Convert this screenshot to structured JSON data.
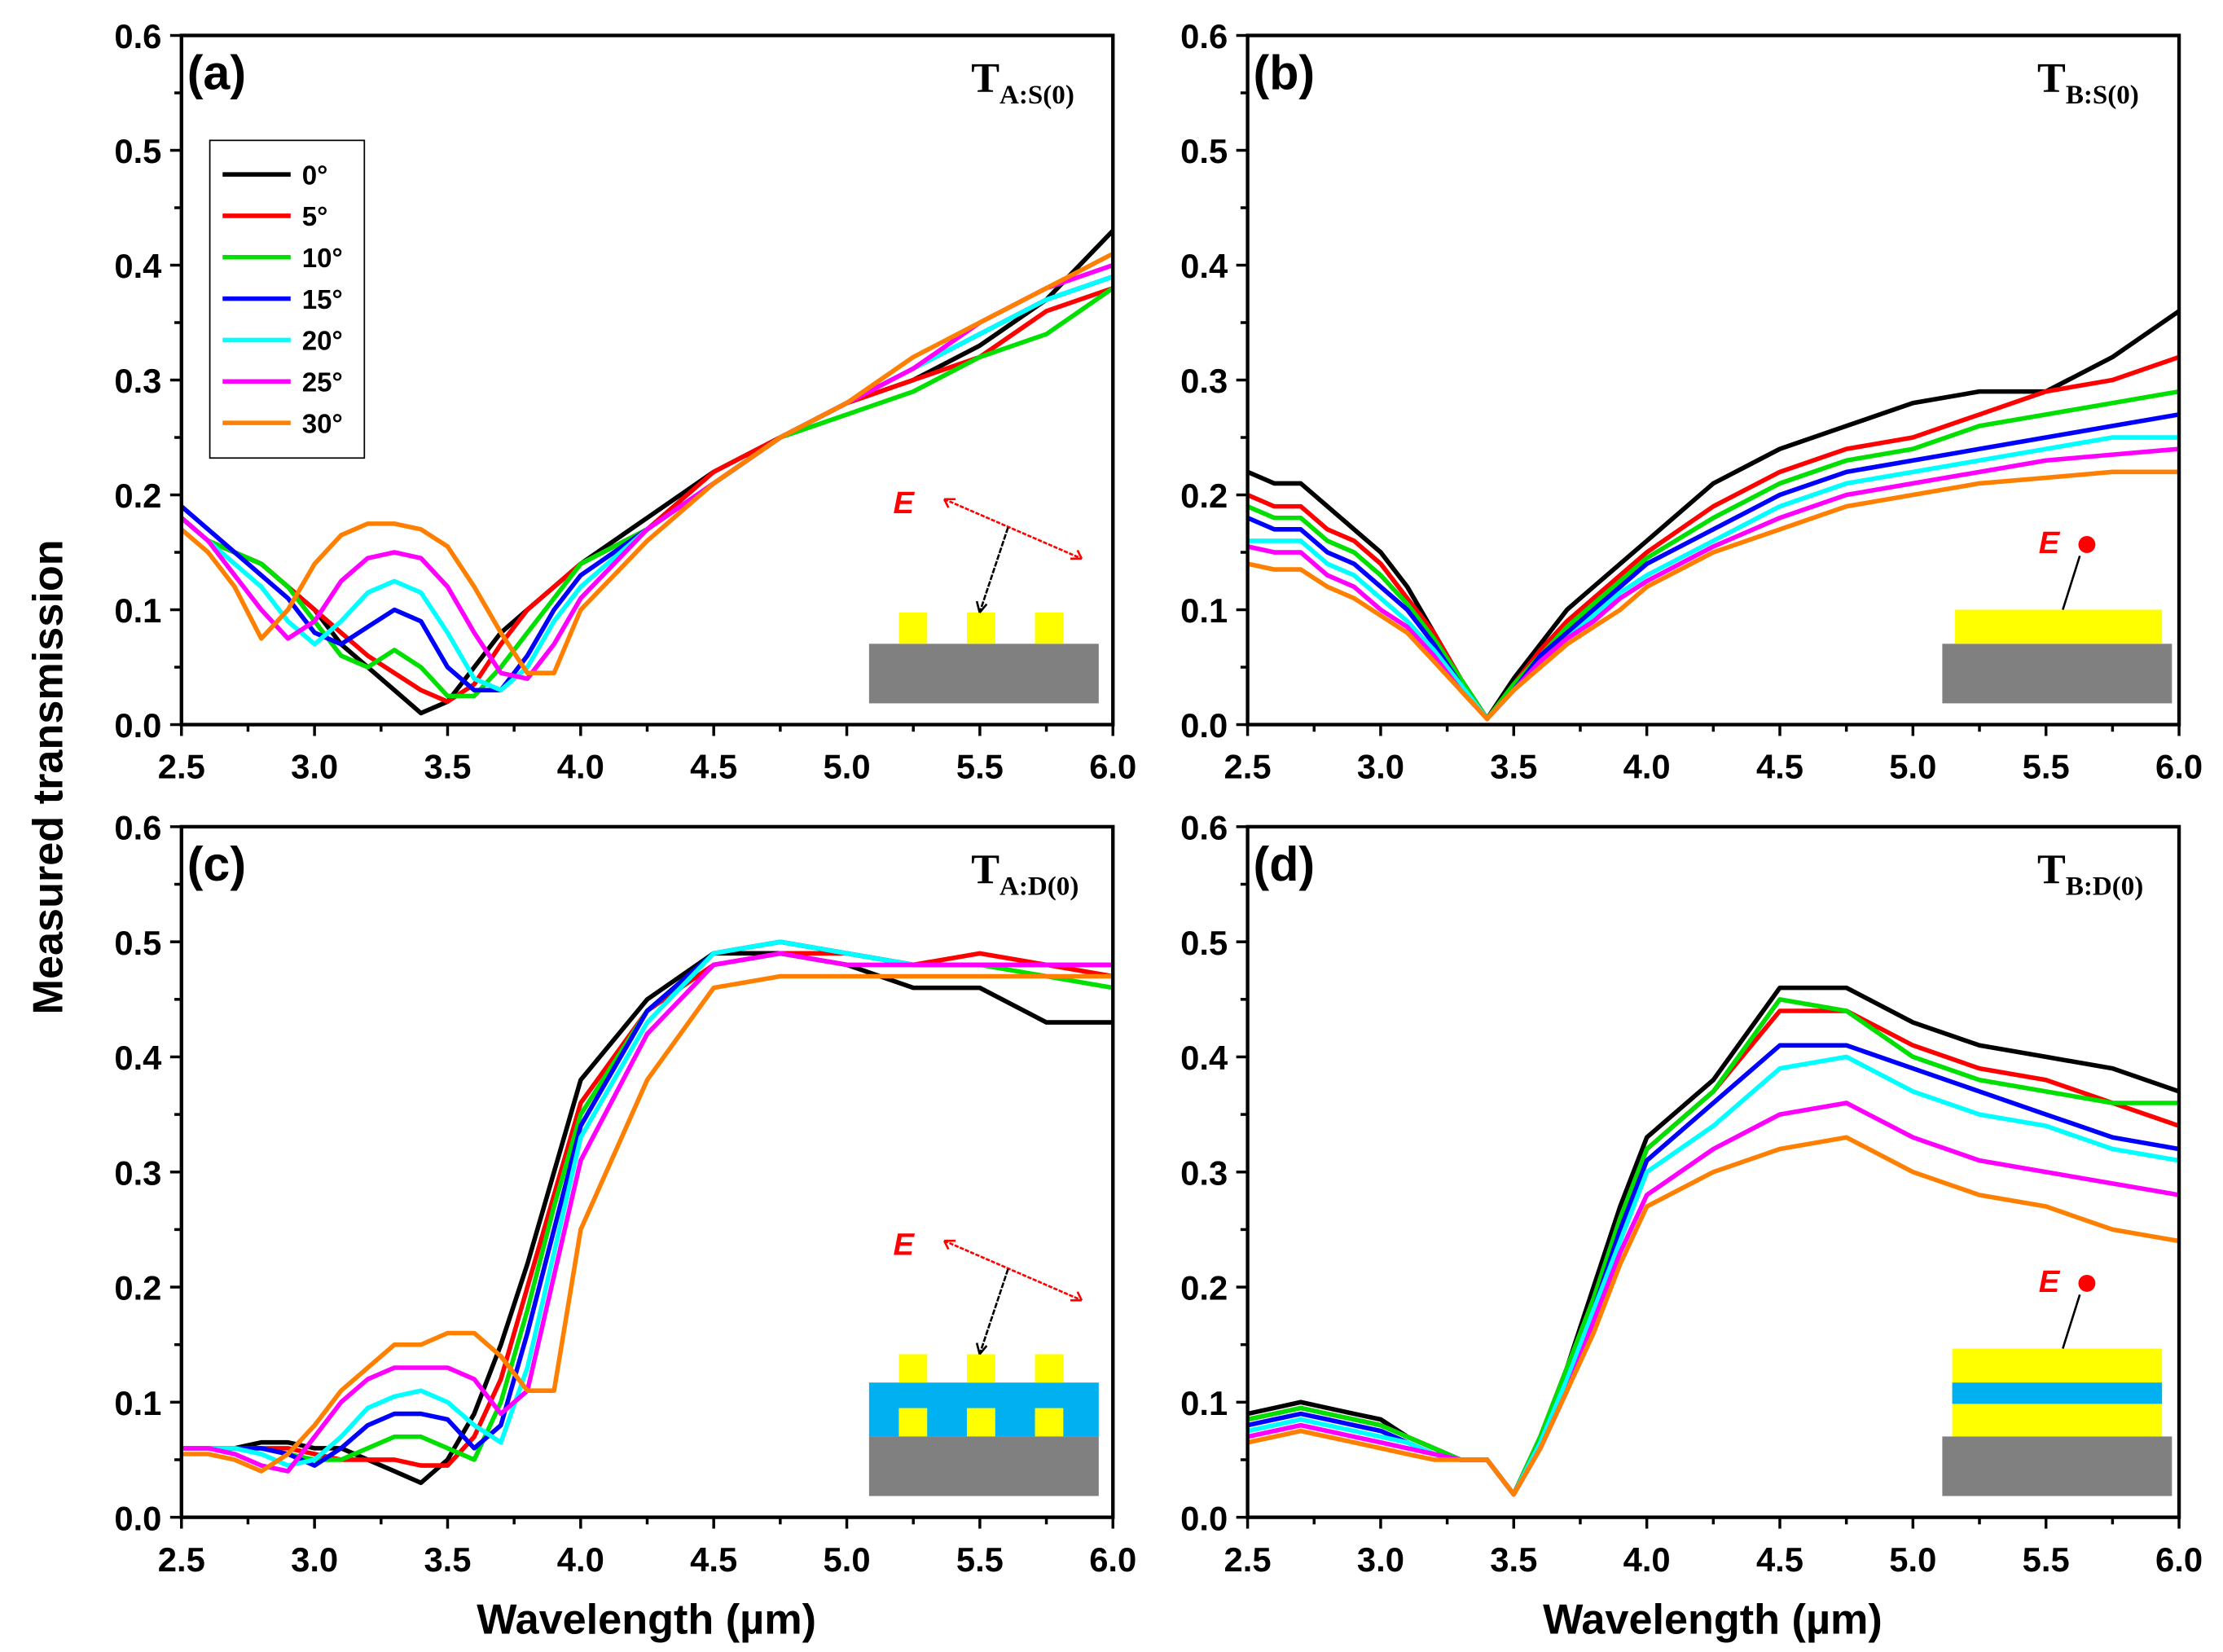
{
  "chart_data": [
    {
      "panel": "(a)",
      "title_main": "T",
      "title_sub": "A:S(0)",
      "type": "line",
      "inset": "grating",
      "inset_label": "E",
      "series": [
        {
          "name": "0°",
          "values": [
            0.18,
            0.16,
            0.15,
            0.14,
            0.12,
            0.1,
            0.07,
            0.05,
            0.03,
            0.01,
            0.02,
            0.05,
            0.08,
            0.1,
            0.12,
            0.14,
            0.18,
            0.22,
            0.25,
            0.28,
            0.3,
            0.33,
            0.37,
            0.43
          ]
        },
        {
          "name": "5°",
          "values": [
            0.18,
            0.16,
            0.15,
            0.14,
            0.12,
            0.1,
            0.08,
            0.06,
            0.045,
            0.03,
            0.02,
            0.035,
            0.07,
            0.1,
            0.12,
            0.14,
            0.17,
            0.22,
            0.25,
            0.28,
            0.3,
            0.32,
            0.36,
            0.38
          ]
        },
        {
          "name": "10°",
          "values": [
            0.18,
            0.16,
            0.15,
            0.14,
            0.12,
            0.09,
            0.06,
            0.05,
            0.065,
            0.05,
            0.025,
            0.025,
            0.05,
            0.08,
            0.11,
            0.14,
            0.17,
            0.21,
            0.25,
            0.27,
            0.29,
            0.32,
            0.34,
            0.38
          ]
        },
        {
          "name": "15°",
          "values": [
            0.19,
            0.17,
            0.15,
            0.13,
            0.11,
            0.08,
            0.07,
            0.085,
            0.1,
            0.09,
            0.05,
            0.03,
            0.03,
            0.06,
            0.1,
            0.13,
            0.17,
            0.21,
            0.25,
            0.28,
            0.31,
            0.34,
            0.37,
            0.39
          ]
        },
        {
          "name": "20°",
          "values": [
            0.18,
            0.16,
            0.14,
            0.12,
            0.09,
            0.07,
            0.09,
            0.115,
            0.125,
            0.115,
            0.08,
            0.04,
            0.03,
            0.05,
            0.09,
            0.12,
            0.17,
            0.21,
            0.25,
            0.28,
            0.31,
            0.34,
            0.37,
            0.39
          ]
        },
        {
          "name": "25°",
          "values": [
            0.18,
            0.16,
            0.13,
            0.1,
            0.075,
            0.09,
            0.125,
            0.145,
            0.15,
            0.145,
            0.12,
            0.08,
            0.045,
            0.04,
            0.07,
            0.11,
            0.17,
            0.21,
            0.25,
            0.28,
            0.31,
            0.35,
            0.38,
            0.4
          ]
        },
        {
          "name": "30°",
          "values": [
            0.17,
            0.15,
            0.12,
            0.075,
            0.1,
            0.14,
            0.165,
            0.175,
            0.175,
            0.17,
            0.155,
            0.12,
            0.08,
            0.045,
            0.045,
            0.1,
            0.16,
            0.21,
            0.25,
            0.28,
            0.32,
            0.35,
            0.38,
            0.41
          ]
        }
      ]
    },
    {
      "panel": "(b)",
      "title_main": "T",
      "title_sub": "B:S(0)",
      "type": "line",
      "inset": "film",
      "inset_label": "E",
      "series": [
        {
          "name": "0°",
          "values": [
            0.22,
            0.21,
            0.21,
            0.19,
            0.17,
            0.15,
            0.12,
            0.08,
            0.04,
            0.005,
            0.04,
            0.07,
            0.1,
            0.12,
            0.14,
            0.16,
            0.21,
            0.24,
            0.26,
            0.28,
            0.29,
            0.29,
            0.32,
            0.36
          ]
        },
        {
          "name": "5°",
          "values": [
            0.2,
            0.19,
            0.19,
            0.17,
            0.16,
            0.14,
            0.11,
            0.08,
            0.04,
            0.005,
            0.035,
            0.065,
            0.09,
            0.11,
            0.13,
            0.15,
            0.19,
            0.22,
            0.24,
            0.25,
            0.27,
            0.29,
            0.3,
            0.32
          ]
        },
        {
          "name": "10°",
          "values": [
            0.19,
            0.18,
            0.18,
            0.16,
            0.15,
            0.13,
            0.105,
            0.075,
            0.04,
            0.005,
            0.035,
            0.06,
            0.085,
            0.105,
            0.125,
            0.145,
            0.18,
            0.21,
            0.23,
            0.24,
            0.26,
            0.27,
            0.28,
            0.29
          ]
        },
        {
          "name": "15°",
          "values": [
            0.18,
            0.17,
            0.17,
            0.15,
            0.14,
            0.12,
            0.1,
            0.07,
            0.035,
            0.005,
            0.03,
            0.06,
            0.08,
            0.1,
            0.12,
            0.14,
            0.17,
            0.2,
            0.22,
            0.23,
            0.24,
            0.25,
            0.26,
            0.27
          ]
        },
        {
          "name": "20°",
          "values": [
            0.16,
            0.16,
            0.16,
            0.14,
            0.13,
            0.11,
            0.09,
            0.065,
            0.035,
            0.005,
            0.03,
            0.055,
            0.075,
            0.095,
            0.115,
            0.13,
            0.16,
            0.19,
            0.21,
            0.22,
            0.23,
            0.24,
            0.25,
            0.25
          ]
        },
        {
          "name": "25°",
          "values": [
            0.155,
            0.15,
            0.15,
            0.13,
            0.12,
            0.1,
            0.085,
            0.06,
            0.03,
            0.005,
            0.03,
            0.055,
            0.075,
            0.09,
            0.11,
            0.125,
            0.155,
            0.18,
            0.2,
            0.21,
            0.22,
            0.23,
            0.235,
            0.24
          ]
        },
        {
          "name": "30°",
          "values": [
            0.14,
            0.135,
            0.135,
            0.12,
            0.11,
            0.095,
            0.08,
            0.055,
            0.03,
            0.005,
            0.03,
            0.05,
            0.07,
            0.085,
            0.1,
            0.12,
            0.15,
            0.17,
            0.19,
            0.2,
            0.21,
            0.215,
            0.22,
            0.22
          ]
        }
      ]
    },
    {
      "panel": "(c)",
      "title_main": "T",
      "title_sub": "A:D(0)",
      "type": "line",
      "inset": "double-grating",
      "inset_label": "E",
      "series": [
        {
          "name": "0°",
          "values": [
            0.06,
            0.06,
            0.06,
            0.065,
            0.065,
            0.06,
            0.06,
            0.05,
            0.04,
            0.03,
            0.05,
            0.09,
            0.15,
            0.22,
            0.3,
            0.38,
            0.45,
            0.49,
            0.49,
            0.48,
            0.46,
            0.46,
            0.43,
            0.43
          ]
        },
        {
          "name": "5°",
          "values": [
            0.06,
            0.06,
            0.06,
            0.06,
            0.06,
            0.055,
            0.05,
            0.05,
            0.05,
            0.045,
            0.045,
            0.07,
            0.12,
            0.2,
            0.28,
            0.36,
            0.44,
            0.48,
            0.49,
            0.49,
            0.48,
            0.49,
            0.48,
            0.47
          ]
        },
        {
          "name": "10°",
          "values": [
            0.06,
            0.06,
            0.06,
            0.06,
            0.055,
            0.05,
            0.05,
            0.06,
            0.07,
            0.07,
            0.06,
            0.05,
            0.1,
            0.18,
            0.27,
            0.35,
            0.44,
            0.49,
            0.5,
            0.49,
            0.48,
            0.48,
            0.47,
            0.46
          ]
        },
        {
          "name": "15°",
          "values": [
            0.06,
            0.06,
            0.06,
            0.06,
            0.055,
            0.045,
            0.06,
            0.08,
            0.09,
            0.09,
            0.085,
            0.06,
            0.08,
            0.16,
            0.25,
            0.34,
            0.44,
            0.49,
            0.5,
            0.49,
            0.48,
            0.48,
            0.48,
            0.48
          ]
        },
        {
          "name": "20°",
          "values": [
            0.06,
            0.06,
            0.06,
            0.055,
            0.045,
            0.05,
            0.07,
            0.095,
            0.105,
            0.11,
            0.1,
            0.08,
            0.065,
            0.13,
            0.23,
            0.33,
            0.43,
            0.49,
            0.5,
            0.49,
            0.48,
            0.48,
            0.48,
            0.48
          ]
        },
        {
          "name": "25°",
          "values": [
            0.06,
            0.06,
            0.055,
            0.045,
            0.04,
            0.07,
            0.1,
            0.12,
            0.13,
            0.13,
            0.13,
            0.12,
            0.09,
            0.11,
            0.21,
            0.31,
            0.42,
            0.48,
            0.49,
            0.48,
            0.48,
            0.48,
            0.48,
            0.48
          ]
        },
        {
          "name": "30°",
          "values": [
            0.055,
            0.055,
            0.05,
            0.04,
            0.055,
            0.08,
            0.11,
            0.13,
            0.15,
            0.15,
            0.16,
            0.16,
            0.14,
            0.11,
            0.11,
            0.25,
            0.38,
            0.46,
            0.47,
            0.47,
            0.47,
            0.47,
            0.47,
            0.47
          ]
        }
      ]
    },
    {
      "panel": "(d)",
      "title_main": "T",
      "title_sub": "B:D(0)",
      "type": "line",
      "inset": "double-film",
      "inset_label": "E",
      "series": [
        {
          "name": "0°",
          "values": [
            0.09,
            0.095,
            0.1,
            0.095,
            0.09,
            0.085,
            0.07,
            0.06,
            0.05,
            0.05,
            0.02,
            0.07,
            0.13,
            0.2,
            0.27,
            0.33,
            0.38,
            0.46,
            0.46,
            0.43,
            0.41,
            0.4,
            0.39,
            0.37
          ]
        },
        {
          "name": "5°",
          "values": [
            0.085,
            0.09,
            0.095,
            0.09,
            0.085,
            0.08,
            0.07,
            0.06,
            0.05,
            0.05,
            0.02,
            0.07,
            0.13,
            0.19,
            0.26,
            0.32,
            0.37,
            0.44,
            0.44,
            0.41,
            0.39,
            0.38,
            0.36,
            0.34
          ]
        },
        {
          "name": "10°",
          "values": [
            0.085,
            0.09,
            0.095,
            0.09,
            0.085,
            0.08,
            0.07,
            0.06,
            0.05,
            0.05,
            0.02,
            0.07,
            0.13,
            0.19,
            0.26,
            0.32,
            0.37,
            0.45,
            0.44,
            0.4,
            0.38,
            0.37,
            0.36,
            0.36
          ]
        },
        {
          "name": "15°",
          "values": [
            0.08,
            0.085,
            0.09,
            0.085,
            0.08,
            0.075,
            0.065,
            0.055,
            0.05,
            0.05,
            0.02,
            0.065,
            0.12,
            0.18,
            0.25,
            0.31,
            0.36,
            0.41,
            0.41,
            0.39,
            0.37,
            0.35,
            0.33,
            0.32
          ]
        },
        {
          "name": "20°",
          "values": [
            0.075,
            0.08,
            0.085,
            0.08,
            0.075,
            0.07,
            0.065,
            0.055,
            0.05,
            0.05,
            0.02,
            0.065,
            0.12,
            0.18,
            0.24,
            0.3,
            0.34,
            0.39,
            0.4,
            0.37,
            0.35,
            0.34,
            0.32,
            0.31
          ]
        },
        {
          "name": "25°",
          "values": [
            0.07,
            0.075,
            0.08,
            0.075,
            0.07,
            0.065,
            0.06,
            0.055,
            0.05,
            0.05,
            0.02,
            0.06,
            0.11,
            0.17,
            0.23,
            0.28,
            0.32,
            0.35,
            0.36,
            0.33,
            0.31,
            0.3,
            0.29,
            0.28
          ]
        },
        {
          "name": "30°",
          "values": [
            0.065,
            0.07,
            0.075,
            0.07,
            0.065,
            0.06,
            0.055,
            0.05,
            0.05,
            0.05,
            0.02,
            0.06,
            0.11,
            0.16,
            0.22,
            0.27,
            0.3,
            0.32,
            0.33,
            0.3,
            0.28,
            0.27,
            0.25,
            0.24
          ]
        }
      ]
    }
  ],
  "shared": {
    "x": [
      2.5,
      2.6,
      2.7,
      2.8,
      2.9,
      3.0,
      3.1,
      3.2,
      3.3,
      3.4,
      3.5,
      3.6,
      3.7,
      3.8,
      3.9,
      4.0,
      4.25,
      4.5,
      4.75,
      5.0,
      5.25,
      5.5,
      5.75,
      6.0
    ],
    "xlim": [
      2.5,
      6.0
    ],
    "ylim": [
      0,
      0.6
    ],
    "xticks": [
      "2.5",
      "3.0",
      "3.5",
      "4.0",
      "4.5",
      "5.0",
      "5.5",
      "6.0"
    ],
    "yticks": [
      "0.0",
      "0.1",
      "0.2",
      "0.3",
      "0.4",
      "0.5",
      "0.6"
    ],
    "xlabel": "Wavelength (µm)",
    "ylabel": "Measured transmission",
    "legend_panel": "(a)",
    "legend_position": "top-left",
    "grid": false,
    "colors": [
      "#000000",
      "#ff0000",
      "#00e000",
      "#0000ff",
      "#00ffff",
      "#ff00ff",
      "#ff8000"
    ]
  }
}
